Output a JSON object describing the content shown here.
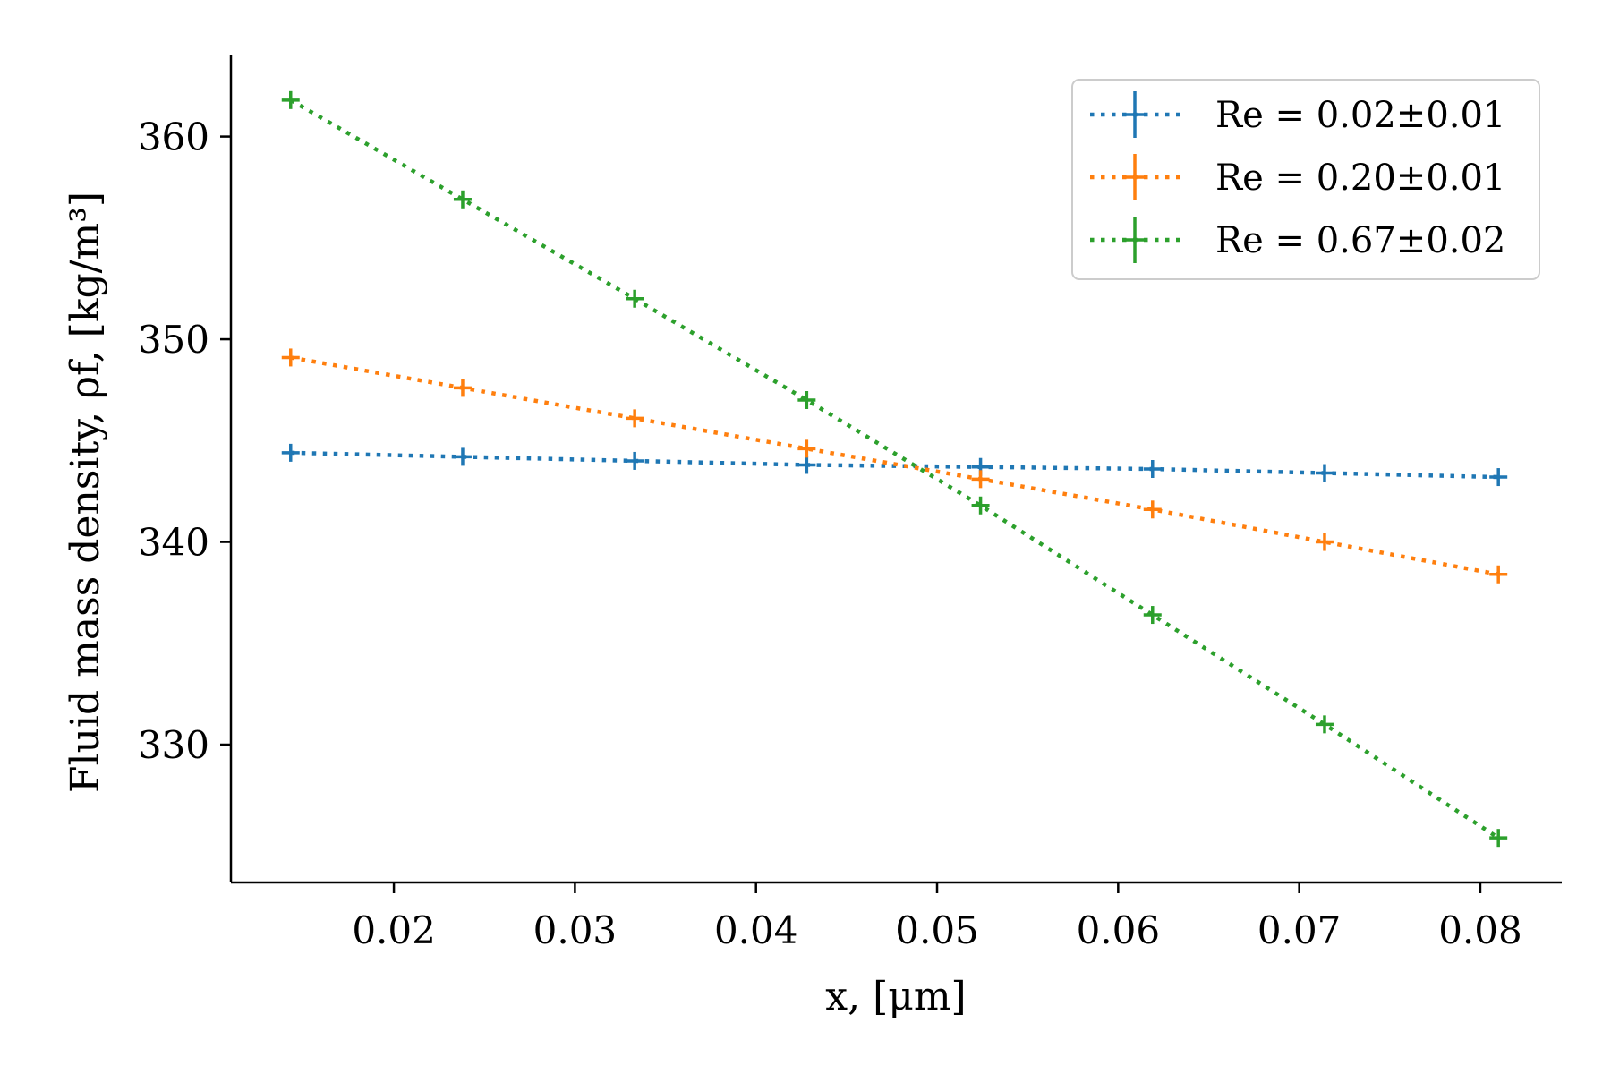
{
  "chart_data": {
    "type": "line",
    "title": "",
    "xlabel": "x, [μm]",
    "ylabel": "Fluid mass density, ρf, [kg/m³]",
    "xlim": [
      0.011,
      0.0845
    ],
    "ylim": [
      323.2,
      364
    ],
    "xticks": [
      0.02,
      0.03,
      0.04,
      0.05,
      0.06,
      0.07,
      0.08
    ],
    "xtick_labels": [
      "0.02",
      "0.03",
      "0.04",
      "0.05",
      "0.06",
      "0.07",
      "0.08"
    ],
    "yticks": [
      330,
      340,
      350,
      360
    ],
    "ytick_labels": [
      "330",
      "340",
      "350",
      "360"
    ],
    "grid": false,
    "legend_position": "top-right",
    "x": [
      0.0143,
      0.0238,
      0.0333,
      0.0428,
      0.0524,
      0.0619,
      0.0714,
      0.081
    ],
    "series": [
      {
        "name": "Re = 0.02±0.01",
        "color": "#1f77b4",
        "values": [
          344.4,
          344.2,
          344.0,
          343.8,
          343.7,
          343.6,
          343.4,
          343.2
        ]
      },
      {
        "name": "Re = 0.20±0.01",
        "color": "#ff7f0e",
        "values": [
          349.1,
          347.6,
          346.1,
          344.6,
          343.1,
          341.6,
          340.0,
          338.4
        ]
      },
      {
        "name": "Re = 0.67±0.02",
        "color": "#2ca02c",
        "values": [
          361.8,
          356.9,
          352.0,
          347.0,
          341.8,
          336.4,
          331.0,
          325.4
        ]
      }
    ]
  }
}
